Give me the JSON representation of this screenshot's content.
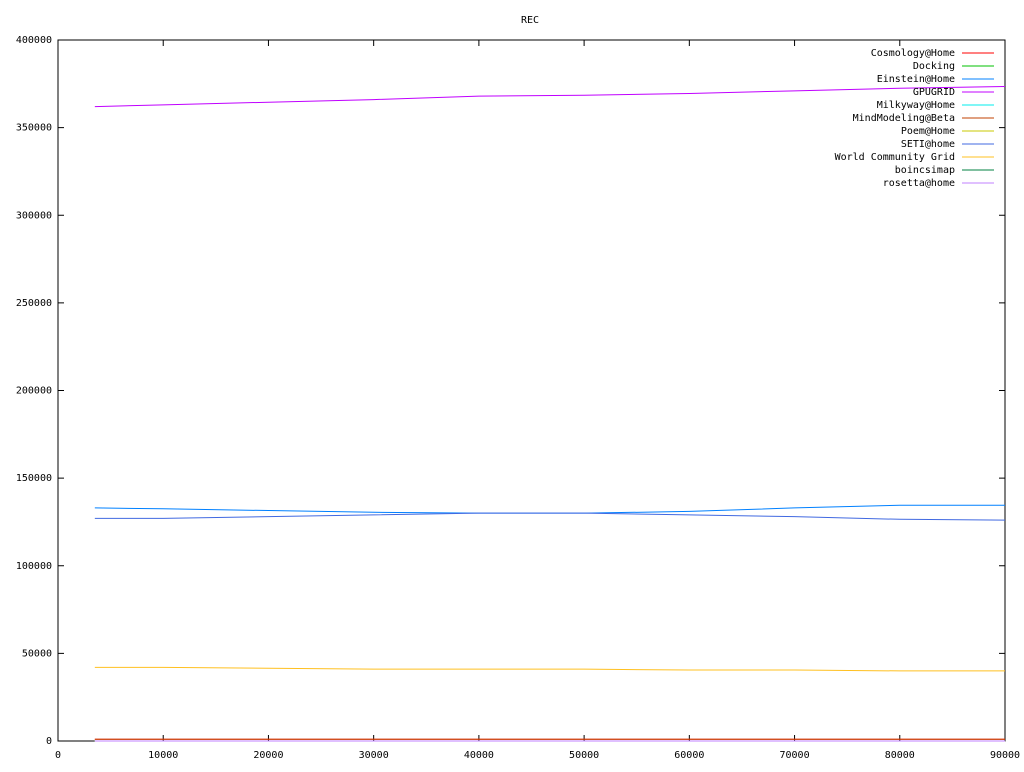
{
  "chart_data": {
    "type": "line",
    "title": "REC",
    "x": [
      3500,
      10000,
      20000,
      30000,
      40000,
      50000,
      60000,
      70000,
      80000,
      90000
    ],
    "series": [
      {
        "name": "Cosmology@Home",
        "color": "#ff0000",
        "values": [
          1000,
          1000,
          1000,
          1000,
          1000,
          1000,
          1000,
          1000,
          1000,
          1000
        ]
      },
      {
        "name": "Docking",
        "color": "#00c000",
        "values": [
          0,
          0,
          0,
          0,
          0,
          0,
          0,
          0,
          0,
          0
        ]
      },
      {
        "name": "Einstein@Home",
        "color": "#0080ff",
        "values": [
          133000,
          132500,
          131500,
          130500,
          130000,
          130000,
          131000,
          133000,
          134500,
          134500
        ]
      },
      {
        "name": "GPUGRID",
        "color": "#c000ff",
        "values": [
          362000,
          363000,
          364500,
          366000,
          368000,
          368500,
          369500,
          371000,
          372500,
          373500
        ]
      },
      {
        "name": "Milkyway@Home",
        "color": "#00eeee",
        "values": [
          0,
          0,
          0,
          0,
          0,
          0,
          0,
          0,
          0,
          0
        ]
      },
      {
        "name": "MindModeling@Beta",
        "color": "#c04000",
        "values": [
          1000,
          1000,
          1000,
          1000,
          1000,
          1000,
          1000,
          1000,
          1000,
          1000
        ]
      },
      {
        "name": "Poem@Home",
        "color": "#c8c800",
        "values": [
          0,
          0,
          0,
          0,
          0,
          0,
          0,
          0,
          0,
          0
        ]
      },
      {
        "name": "SETI@home",
        "color": "#4169e1",
        "values": [
          127000,
          127000,
          128000,
          129000,
          130000,
          130000,
          129000,
          128000,
          126500,
          126000
        ]
      },
      {
        "name": "World Community Grid",
        "color": "#ffc020",
        "values": [
          42000,
          42000,
          41500,
          41000,
          41000,
          41000,
          40500,
          40500,
          40000,
          40000
        ]
      },
      {
        "name": "boincsimap",
        "color": "#008040",
        "values": [
          0,
          0,
          0,
          0,
          0,
          0,
          0,
          0,
          0,
          0
        ]
      },
      {
        "name": "rosetta@home",
        "color": "#c080ff",
        "values": [
          0,
          0,
          0,
          0,
          0,
          0,
          0,
          0,
          0,
          0
        ]
      }
    ],
    "xlim": [
      0,
      90000
    ],
    "xticks": [
      0,
      10000,
      20000,
      30000,
      40000,
      50000,
      60000,
      70000,
      80000,
      90000
    ],
    "ylim": [
      0,
      400000
    ],
    "yticks": [
      0,
      50000,
      100000,
      150000,
      200000,
      250000,
      300000,
      350000,
      400000
    ],
    "grid": false,
    "legend": "top-right"
  }
}
